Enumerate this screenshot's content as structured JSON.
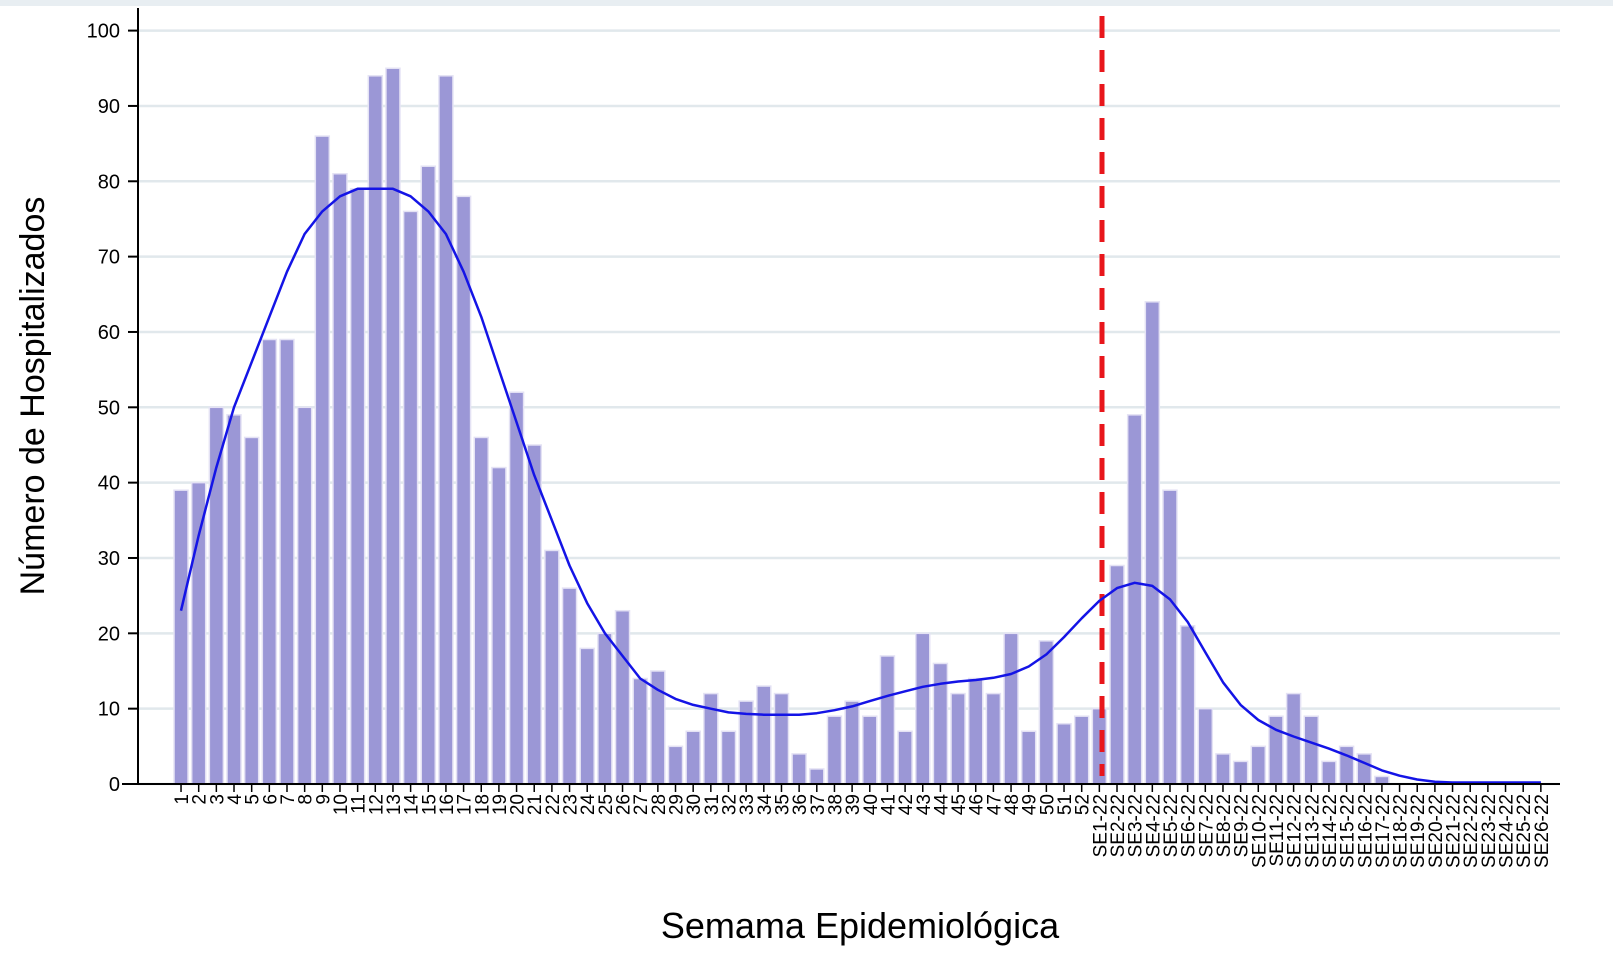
{
  "chart_data": {
    "type": "bar",
    "x_label": "Semama Epidemiológica",
    "y_label": "Número de Hospitalizados",
    "categories": [
      "1",
      "2",
      "3",
      "4",
      "5",
      "6",
      "7",
      "8",
      "9",
      "10",
      "11",
      "12",
      "13",
      "14",
      "15",
      "16",
      "17",
      "18",
      "19",
      "20",
      "21",
      "22",
      "23",
      "24",
      "25",
      "26",
      "27",
      "28",
      "29",
      "30",
      "31",
      "32",
      "33",
      "34",
      "35",
      "36",
      "37",
      "38",
      "39",
      "40",
      "41",
      "42",
      "43",
      "44",
      "45",
      "46",
      "47",
      "48",
      "49",
      "50",
      "51",
      "52",
      "SE1-22",
      "SE2-22",
      "SE3-22",
      "SE4-22",
      "SE5-22",
      "SE6-22",
      "SE7-22",
      "SE8-22",
      "SE9-22",
      "SE10-22",
      "SE11-22",
      "SE12-22",
      "SE13-22",
      "SE14-22",
      "SE15-22",
      "SE16-22",
      "SE17-22",
      "SE18-22",
      "SE19-22",
      "SE20-22",
      "SE21-22",
      "SE22-22",
      "SE23-22",
      "SE24-22",
      "SE25-22",
      "SE26-22"
    ],
    "series": [
      {
        "type": "bar",
        "color": "#9b97d6",
        "values": [
          39,
          40,
          50,
          49,
          46,
          59,
          59,
          50,
          86,
          81,
          79,
          94,
          95,
          76,
          82,
          94,
          78,
          46,
          42,
          52,
          45,
          31,
          26,
          18,
          20,
          23,
          14,
          15,
          5,
          7,
          12,
          7,
          11,
          13,
          12,
          4,
          2,
          9,
          11,
          9,
          17,
          7,
          20,
          16,
          12,
          14,
          12,
          20,
          7,
          19,
          8,
          9,
          10,
          29,
          49,
          64,
          39,
          21,
          10,
          4,
          3,
          5,
          9,
          12,
          9,
          3,
          5,
          4,
          1,
          0,
          0,
          0,
          0,
          0,
          0,
          0,
          0,
          0
        ]
      },
      {
        "type": "line",
        "color": "#1414e6",
        "values": [
          23,
          33,
          42,
          50,
          56,
          62,
          68,
          73,
          76,
          78,
          79,
          79,
          79,
          78,
          76,
          73,
          68,
          62,
          55,
          48,
          41,
          35,
          29,
          24,
          20,
          17,
          14,
          12.5,
          11.3,
          10.5,
          10,
          9.5,
          9.3,
          9.2,
          9.2,
          9.2,
          9.4,
          9.8,
          10.3,
          11,
          11.7,
          12.3,
          12.9,
          13.3,
          13.6,
          13.8,
          14.1,
          14.6,
          15.6,
          17.2,
          19.5,
          22,
          24.3,
          26,
          26.7,
          26.3,
          24.5,
          21.5,
          17.5,
          13.5,
          10.5,
          8.5,
          7.2,
          6.3,
          5.5,
          4.7,
          3.8,
          2.8,
          1.8,
          1.1,
          0.6,
          0.3,
          0.2,
          0.2,
          0.2,
          0.2,
          0.2,
          0.2
        ]
      }
    ],
    "ylim": [
      0,
      103
    ],
    "yticks": [
      0,
      10,
      20,
      30,
      40,
      50,
      60,
      70,
      80,
      90,
      100
    ],
    "grid": true
  }
}
